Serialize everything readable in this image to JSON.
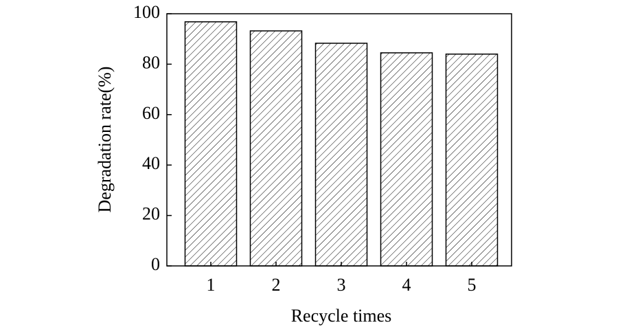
{
  "chart_data": {
    "type": "bar",
    "xlabel": "Recycle times",
    "ylabel": "Degradation rate(%)",
    "categories": [
      "1",
      "2",
      "3",
      "4",
      "5"
    ],
    "values": [
      96.8,
      93.2,
      88.3,
      84.5,
      84.0
    ],
    "color": "#000000",
    "ylim": [
      0,
      100
    ],
    "yticks": [
      0,
      20,
      40,
      60,
      80,
      100
    ],
    "grid": false
  }
}
